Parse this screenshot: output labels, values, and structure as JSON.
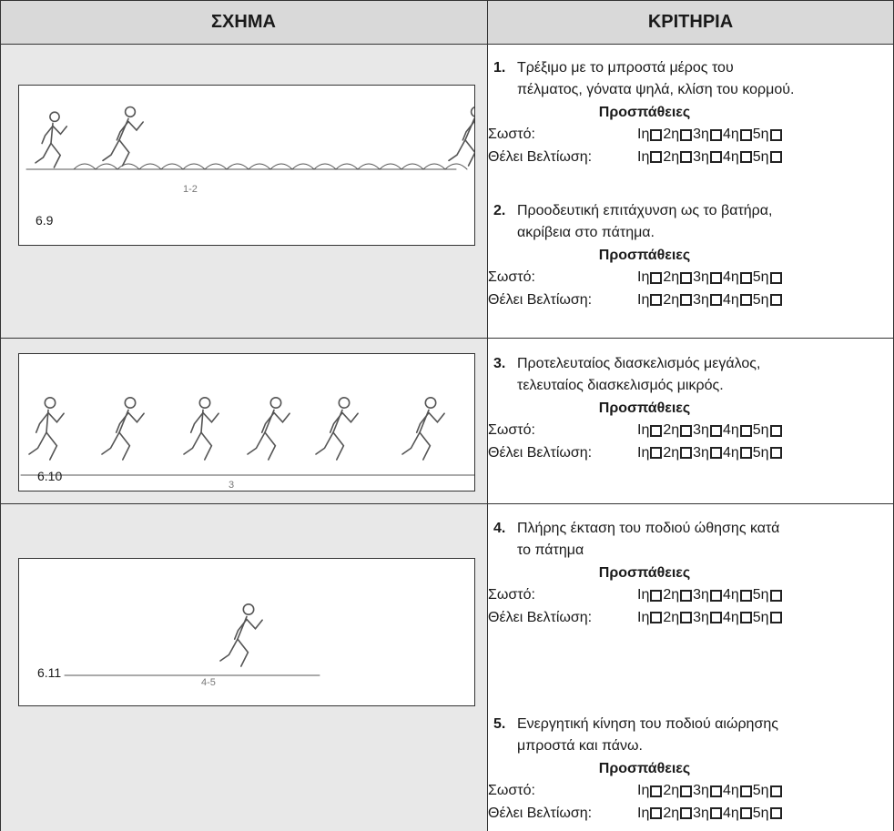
{
  "header": {
    "col1": "ΣΧΗΜΑ",
    "col2": "ΚΡΙΤΗΡΙΑ"
  },
  "figures": [
    {
      "label": "6.9",
      "note": "1-2"
    },
    {
      "label": "6.10",
      "note": "3"
    },
    {
      "label": "6.11",
      "note": "4-5"
    }
  ],
  "criteria": [
    {
      "number": "1.",
      "lines": [
        "Τρέξιμο με το μπροστά μέρος του",
        "πέλματος, γόνατα ψηλά, κλίση του κορμού."
      ],
      "attempts_title": "Προσπάθειες",
      "rows": [
        {
          "label": "Σωστό:",
          "attempts": [
            "Ιη",
            "2η",
            "3η",
            "4η",
            "5η"
          ]
        },
        {
          "label": "Θέλει Βελτίωση:",
          "attempts": [
            "Ιη",
            "2η",
            "3η",
            "4η",
            "5η"
          ]
        }
      ]
    },
    {
      "number": "2.",
      "lines": [
        "Προοδευτική επιτάχυνση ως το βατήρα,",
        "ακρίβεια στο πάτημα."
      ],
      "attempts_title": "Προσπάθειες",
      "rows": [
        {
          "label": "Σωστό:",
          "attempts": [
            "Ιη",
            "2η",
            "3η",
            "4η",
            "5η"
          ]
        },
        {
          "label": "Θέλει Βελτίωση:",
          "attempts": [
            "Ιη",
            "2η",
            "3η",
            "4η",
            "5η"
          ]
        }
      ]
    },
    {
      "number": "3.",
      "lines": [
        "Προτελευταίος διασκελισμός μεγάλος,",
        "τελευταίος διασκελισμός μικρός."
      ],
      "attempts_title": "Προσπάθειες",
      "rows": [
        {
          "label": "Σωστό:",
          "attempts": [
            "Ιη",
            "2η",
            "3η",
            "4η",
            "5η"
          ]
        },
        {
          "label": "Θέλει Βελτίωση:",
          "attempts": [
            "Ιη",
            "2η",
            "3η",
            "4η",
            "5η"
          ]
        }
      ]
    },
    {
      "number": "4.",
      "lines": [
        "Πλήρης έκταση του ποδιού ώθησης κατά",
        "το πάτημα"
      ],
      "attempts_title": "Προσπάθειες",
      "rows": [
        {
          "label": "Σωστό:",
          "attempts": [
            "Ιη",
            "2η",
            "3η",
            "4η",
            "5η"
          ]
        },
        {
          "label": "Θέλει Βελτίωση:",
          "attempts": [
            "Ιη",
            "2η",
            "3η",
            "4η",
            "5η"
          ]
        }
      ]
    },
    {
      "number": "5.",
      "lines": [
        "Ενεργητική κίνηση του ποδιού αιώρησης",
        "μπροστά και πάνω."
      ],
      "attempts_title": "Προσπάθειες",
      "rows": [
        {
          "label": "Σωστό:",
          "attempts": [
            "Ιη",
            "2η",
            "3η",
            "4η",
            "5η"
          ]
        },
        {
          "label": "Θέλει Βελτίωση:",
          "attempts": [
            "Ιη",
            "2η",
            "3η",
            "4η",
            "5η"
          ]
        }
      ]
    }
  ]
}
